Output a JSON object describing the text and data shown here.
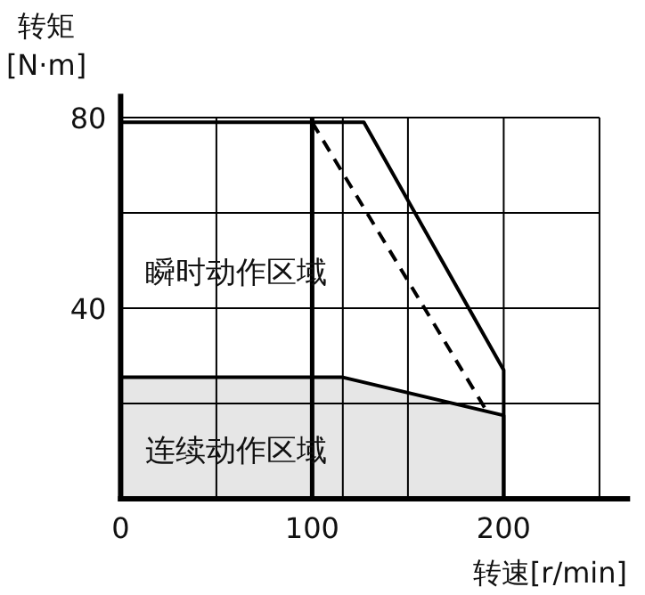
{
  "chart_data": {
    "type": "line",
    "xlabel": "转速[r/min]",
    "ylabel": "转矩 [N·m]",
    "annotations": [
      "瞬时动作区域"
    ],
    "xlim": [
      0,
      266
    ],
    "ylim": [
      0,
      85
    ],
    "xticks": [
      0,
      {
        "value": 50,
        "label": null
      },
      100,
      {
        "value": 150,
        "label": null
      },
      200,
      {
        "value": 250,
        "label": null
      }
    ],
    "yticks": [
      {
        "value": 20,
        "label": null
      },
      40,
      {
        "value": 60,
        "label": null
      },
      80
    ],
    "grid": true,
    "legend": false,
    "marker": "none",
    "ref_lines": [
      {
        "axis": "x",
        "value": 100,
        "color": "#000000"
      },
      {
        "axis": "x",
        "value": 116,
        "color": "#000000"
      }
    ],
    "series": [
      {
        "name": "连续动作区域",
        "type": "area",
        "color": "#e6e6e6",
        "x": [
          0,
          116,
          200,
          200
        ],
        "values": [
          25.5,
          25.5,
          17.5,
          0
        ]
      },
      {
        "type": "line",
        "color": "#000000",
        "line_style": "solid",
        "x": [
          0,
          127,
          200,
          200
        ],
        "values": [
          79,
          79,
          27,
          0
        ]
      },
      {
        "type": "line",
        "color": "#000000",
        "line_style": "dashed",
        "x": [
          100,
          191
        ],
        "values": [
          79,
          18.5
        ]
      }
    ]
  }
}
